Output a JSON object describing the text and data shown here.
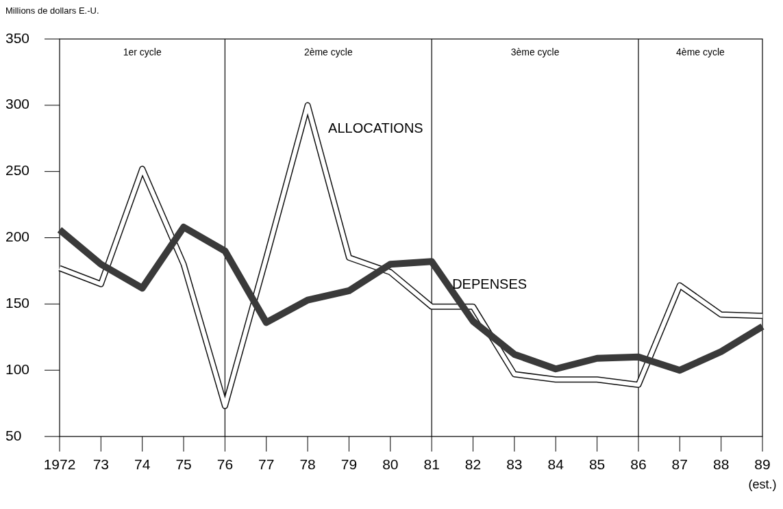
{
  "chart_data": {
    "type": "line",
    "ylabel": "Millions de dollars E.-U.",
    "x": [
      1972,
      1973,
      1974,
      1975,
      1976,
      1977,
      1978,
      1979,
      1980,
      1981,
      1982,
      1983,
      1984,
      1985,
      1986,
      1987,
      1988,
      1989
    ],
    "series": [
      {
        "name": "ALLOCATIONS",
        "color": "#ffffff",
        "values": [
          177,
          165,
          252,
          180,
          73,
          185,
          300,
          185,
          174,
          148,
          148,
          97,
          93,
          93,
          89,
          164,
          142,
          141
        ]
      },
      {
        "name": "DEPENSES",
        "color": "#3a3a3a",
        "values": [
          206,
          180,
          162,
          208,
          190,
          136,
          153,
          160,
          180,
          182,
          137,
          112,
          101,
          109,
          110,
          100,
          114,
          133
        ]
      }
    ],
    "xlim": [
      1972,
      1989
    ],
    "xticks": [
      {
        "value": 1972,
        "label": "1972"
      },
      {
        "value": 1973,
        "label": "73"
      },
      {
        "value": 1974,
        "label": "74"
      },
      {
        "value": 1975,
        "label": "75"
      },
      {
        "value": 1976,
        "label": "76"
      },
      {
        "value": 1977,
        "label": "77"
      },
      {
        "value": 1978,
        "label": "78"
      },
      {
        "value": 1979,
        "label": "79"
      },
      {
        "value": 1980,
        "label": "80"
      },
      {
        "value": 1981,
        "label": "81"
      },
      {
        "value": 1982,
        "label": "82"
      },
      {
        "value": 1983,
        "label": "83"
      },
      {
        "value": 1984,
        "label": "84"
      },
      {
        "value": 1985,
        "label": "85"
      },
      {
        "value": 1986,
        "label": "86"
      },
      {
        "value": 1987,
        "label": "87"
      },
      {
        "value": 1988,
        "label": "88"
      },
      {
        "value": 1989,
        "label": "89"
      }
    ],
    "ylim": [
      50,
      350
    ],
    "yticks": [
      50,
      100,
      150,
      200,
      250,
      300,
      350
    ],
    "ref_lines": [
      {
        "axis": "x",
        "value": 1976
      },
      {
        "axis": "x",
        "value": 1981
      },
      {
        "axis": "x",
        "value": 1986
      }
    ],
    "annotations": [
      "1er cycle",
      "2ème cycle",
      "3ème cycle",
      "4ème cycle",
      "(est.)"
    ],
    "grid": false
  }
}
